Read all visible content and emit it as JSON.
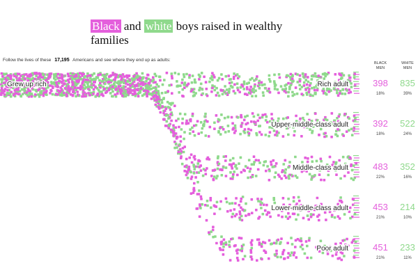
{
  "chart_data": {
    "type": "dot-flow",
    "title": {
      "black": "Black",
      "and": "and",
      "white": "white",
      "rest": "boys raised in wealthy families"
    },
    "intro": {
      "before": "Follow the lives of these",
      "count": "17,195",
      "after": "Americans and see where they end up as adults:"
    },
    "origin": "Grew up rich",
    "columns": {
      "black": "BLACK MEN",
      "white": "WHITE MEN"
    },
    "colors": {
      "black": "#e45fdc",
      "white": "#8fd98c"
    },
    "outcomes": [
      {
        "label": "Rich adult",
        "black": 398,
        "black_pct": "18%",
        "white": 835,
        "white_pct": "39%"
      },
      {
        "label": "Upper-middle-class adult",
        "black": 392,
        "black_pct": "18%",
        "white": 522,
        "white_pct": "24%"
      },
      {
        "label": "Middle-class adult",
        "black": 483,
        "black_pct": "22%",
        "white": 352,
        "white_pct": "16%"
      },
      {
        "label": "Lower-middle-class adult",
        "black": 453,
        "black_pct": "21%",
        "white": 214,
        "white_pct": "10%"
      },
      {
        "label": "Poor adult",
        "black": 451,
        "black_pct": "21%",
        "white": 233,
        "white_pct": "11%"
      }
    ]
  }
}
